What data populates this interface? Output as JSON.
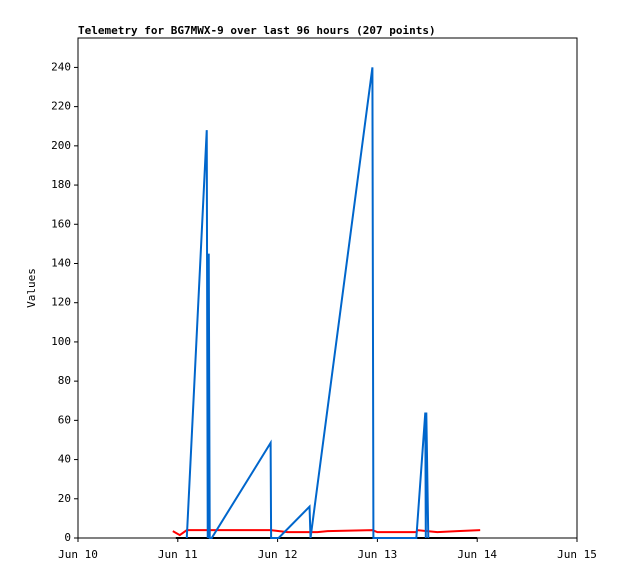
{
  "chart_data": {
    "type": "line",
    "title": "Telemetry for BG7MWX-9 over last 96 hours (207 points)",
    "y_label": "Values",
    "xlim": [
      10,
      15
    ],
    "xticks": [
      {
        "value": 10,
        "label": "Jun 10"
      },
      {
        "value": 11,
        "label": "Jun 11"
      },
      {
        "value": 12,
        "label": "Jun 12"
      },
      {
        "value": 13,
        "label": "Jun 13"
      },
      {
        "value": 14,
        "label": "Jun 14"
      },
      {
        "value": 15,
        "label": "Jun 15"
      }
    ],
    "ylim": [
      0,
      255
    ],
    "yticks": [
      0,
      20,
      40,
      60,
      80,
      100,
      120,
      140,
      160,
      180,
      200,
      220,
      240
    ],
    "grid": false,
    "series": [
      {
        "color": "#000000",
        "x": [
          10.98,
          14.0
        ],
        "values": [
          0,
          0
        ]
      },
      {
        "color": "#ff0000",
        "x": [
          10.95,
          11.02,
          11.09,
          11.5,
          11.93,
          12.1,
          12.4,
          12.5,
          12.95,
          13.0,
          13.39,
          13.4,
          13.6,
          13.8,
          14.03
        ],
        "values": [
          3.5,
          1.5,
          4,
          4,
          4,
          3,
          3,
          3.5,
          4,
          3,
          3,
          4,
          3,
          3.5,
          4
        ]
      },
      {
        "color": "#0066cc",
        "x": [
          11.09,
          11.29,
          11.3,
          11.31,
          11.32,
          11.34,
          11.93,
          11.935,
          12.01,
          12.32,
          12.33,
          12.95,
          12.96,
          13.39,
          13.48,
          13.485,
          13.49,
          13.51
        ],
        "values": [
          0,
          208,
          0,
          145,
          0,
          0,
          48.5,
          0,
          0,
          16,
          0,
          240,
          0,
          0,
          64,
          0,
          64,
          0
        ]
      }
    ]
  }
}
